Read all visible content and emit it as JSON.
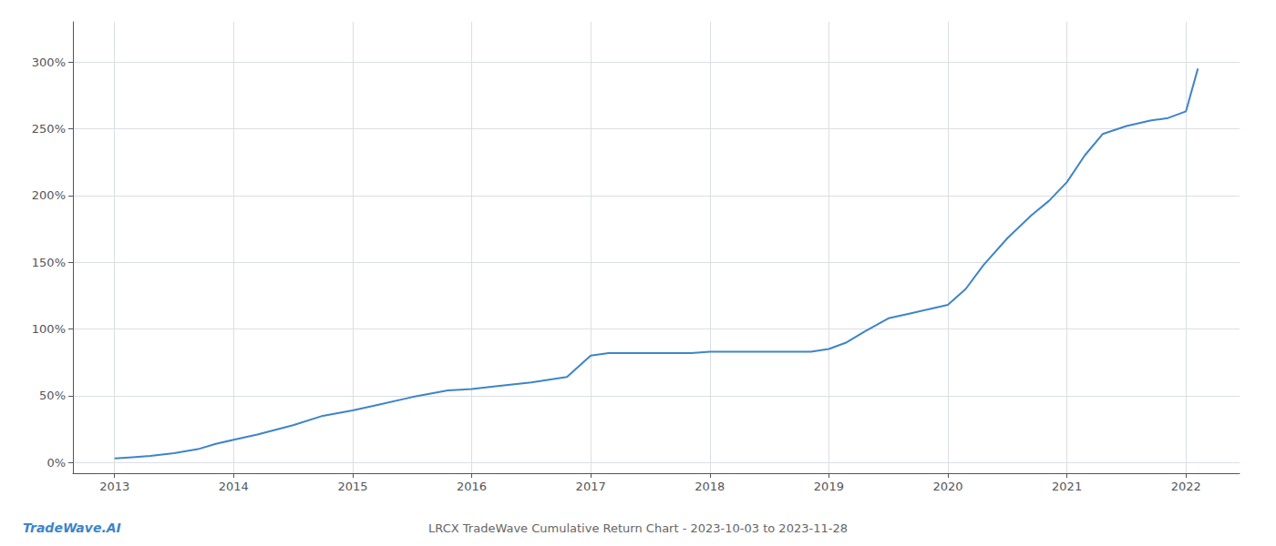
{
  "chart_data": {
    "type": "line",
    "title": "LRCX TradeWave Cumulative Return Chart - 2023-10-03 to 2023-11-28",
    "annotations": [
      "TradeWave.AI"
    ],
    "x": [
      2013.0,
      2013.15,
      2013.3,
      2013.5,
      2013.7,
      2013.85,
      2014.0,
      2014.2,
      2014.5,
      2014.75,
      2015.0,
      2015.2,
      2015.5,
      2015.8,
      2016.0,
      2016.2,
      2016.5,
      2016.8,
      2017.0,
      2017.15,
      2017.3,
      2017.5,
      2017.7,
      2017.85,
      2018.0,
      2018.2,
      2018.4,
      2018.6,
      2018.85,
      2019.0,
      2019.15,
      2019.3,
      2019.5,
      2019.7,
      2019.85,
      2020.0,
      2020.15,
      2020.3,
      2020.5,
      2020.7,
      2020.85,
      2021.0,
      2021.15,
      2021.3,
      2021.5,
      2021.7,
      2021.85,
      2022.0,
      2022.1
    ],
    "values": [
      3,
      4,
      5,
      7,
      10,
      14,
      17,
      21,
      28,
      35,
      39,
      43,
      49,
      54,
      55,
      57,
      60,
      64,
      80,
      82,
      82,
      82,
      82,
      82,
      83,
      83,
      83,
      83,
      83,
      85,
      90,
      98,
      108,
      112,
      115,
      118,
      130,
      148,
      168,
      185,
      196,
      210,
      230,
      246,
      252,
      256,
      258,
      263,
      295
    ],
    "color": "#3d85c8",
    "xlim": [
      2012.65,
      2022.45
    ],
    "xticks": [
      2013,
      2014,
      2015,
      2016,
      2017,
      2018,
      2019,
      2020,
      2021,
      2022
    ],
    "ylim": [
      -8,
      330
    ],
    "yticks": [
      {
        "value": 0,
        "label": "0%"
      },
      {
        "value": 50,
        "label": "50%"
      },
      {
        "value": 100,
        "label": "100%"
      },
      {
        "value": 150,
        "label": "150%"
      },
      {
        "value": 200,
        "label": "200%"
      },
      {
        "value": 250,
        "label": "250%"
      },
      {
        "value": 300,
        "label": "300%"
      }
    ],
    "grid": true
  }
}
